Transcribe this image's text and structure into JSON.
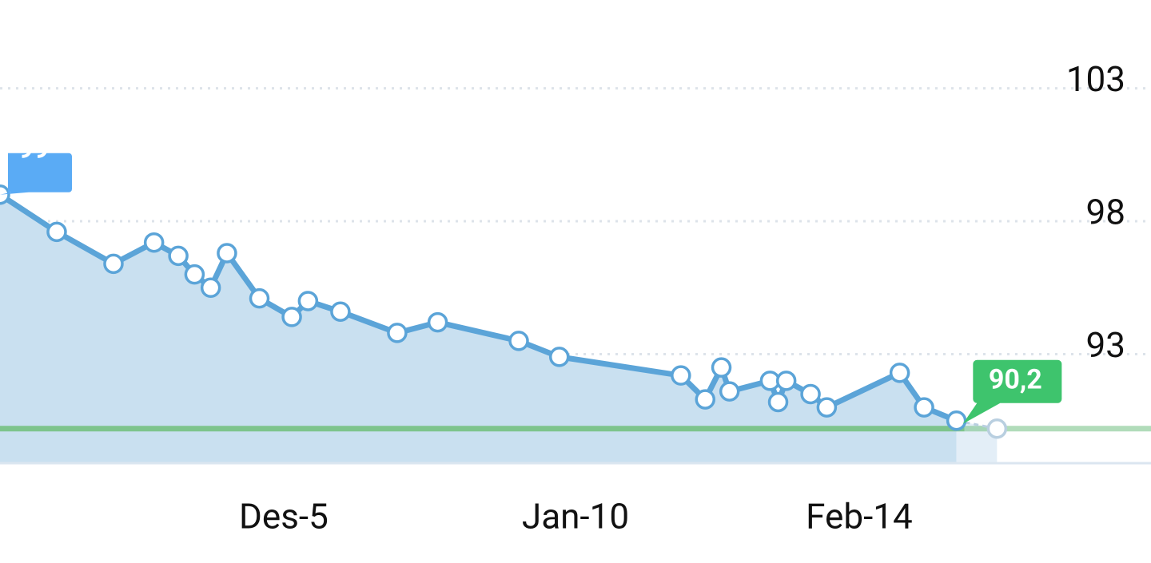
{
  "chart_data": {
    "type": "line",
    "x": [
      -35,
      -28,
      -21,
      -16,
      -13,
      -11,
      -9,
      -7,
      -3,
      1,
      3,
      7,
      14,
      19,
      29,
      34,
      49,
      52,
      54,
      55,
      60,
      61,
      62,
      65,
      67,
      76,
      79,
      83
    ],
    "values": [
      99,
      97.6,
      96.4,
      97.2,
      96.7,
      96.0,
      95.5,
      96.8,
      95.1,
      94.4,
      95.0,
      94.6,
      93.8,
      94.2,
      93.5,
      92.9,
      92.2,
      91.3,
      92.5,
      91.6,
      92.0,
      91.2,
      92.0,
      91.5,
      91.0,
      92.3,
      91.0,
      90.5
    ],
    "color": "#5ba4d8",
    "goal": 90.2,
    "goal_x": 88,
    "goal_label": "90,2",
    "goal_color": "#7dc48c",
    "xlim": [
      -35,
      107
    ],
    "xticks": [
      {
        "value": 0,
        "label": "Des-5"
      },
      {
        "value": 36,
        "label": "Jan-10"
      },
      {
        "value": 71,
        "label": "Feb-14"
      }
    ],
    "ylim": [
      88,
      105
    ],
    "yticks": [
      103,
      98,
      93
    ],
    "grid": true
  }
}
